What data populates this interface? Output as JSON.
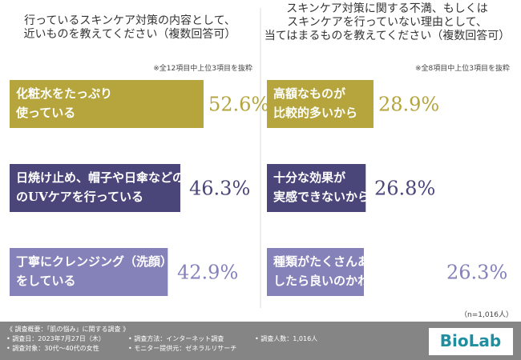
{
  "chart_data": [
    {
      "type": "bar",
      "title": [
        "行っているスキンケア対策の内容として、",
        "近いものを教えてください（複数回答可）"
      ],
      "note": "※全12項目中上位3項目を抜粋",
      "categories": [
        [
          "化粧水をたっぷり",
          "使っている"
        ],
        [
          "日焼け止め、帽子や日傘などの",
          "のUVケアを行っている"
        ],
        [
          "丁寧にクレンジング（洗顔）",
          "をしている"
        ]
      ],
      "values": [
        52.6,
        46.3,
        42.9
      ],
      "value_labels": [
        "52.6%",
        "46.3%",
        "42.9%"
      ],
      "colors": [
        "#b5a53c",
        "#4b467a",
        "#8581b9"
      ]
    },
    {
      "type": "bar",
      "title": [
        "スキンケア対策に関する不満、もしくは",
        "スキンケアを行っていない理由として、",
        "当てはまるものを教えてください（複数回答可）"
      ],
      "note": "※全8項目中上位3項目を抜粋",
      "categories": [
        [
          "高額なものが",
          "比較的多いから"
        ],
        [
          "十分な効果が",
          "実感できないから"
        ],
        [
          "種類がたくさんあってどれに",
          "したら良いのかわからないから"
        ]
      ],
      "values": [
        28.9,
        26.8,
        26.3
      ],
      "value_labels": [
        "28.9%",
        "26.8%",
        "26.3%"
      ],
      "colors": [
        "#b5a53c",
        "#4b467a",
        "#8581b9"
      ]
    }
  ],
  "sample_note": "（n=1,016人）",
  "footer": {
    "heading": "《 調査概要：「肌の悩み」に関する調査 》",
    "items": [
      "• 調査日：2023年7月27日（木）",
      "• 調査方法：インターネット調査",
      "• 調査人数：1,016人",
      "• 調査対象：30代〜40代の女性",
      "• モニター提供元：ゼネラルリサーチ"
    ],
    "logo": "BioLab"
  }
}
